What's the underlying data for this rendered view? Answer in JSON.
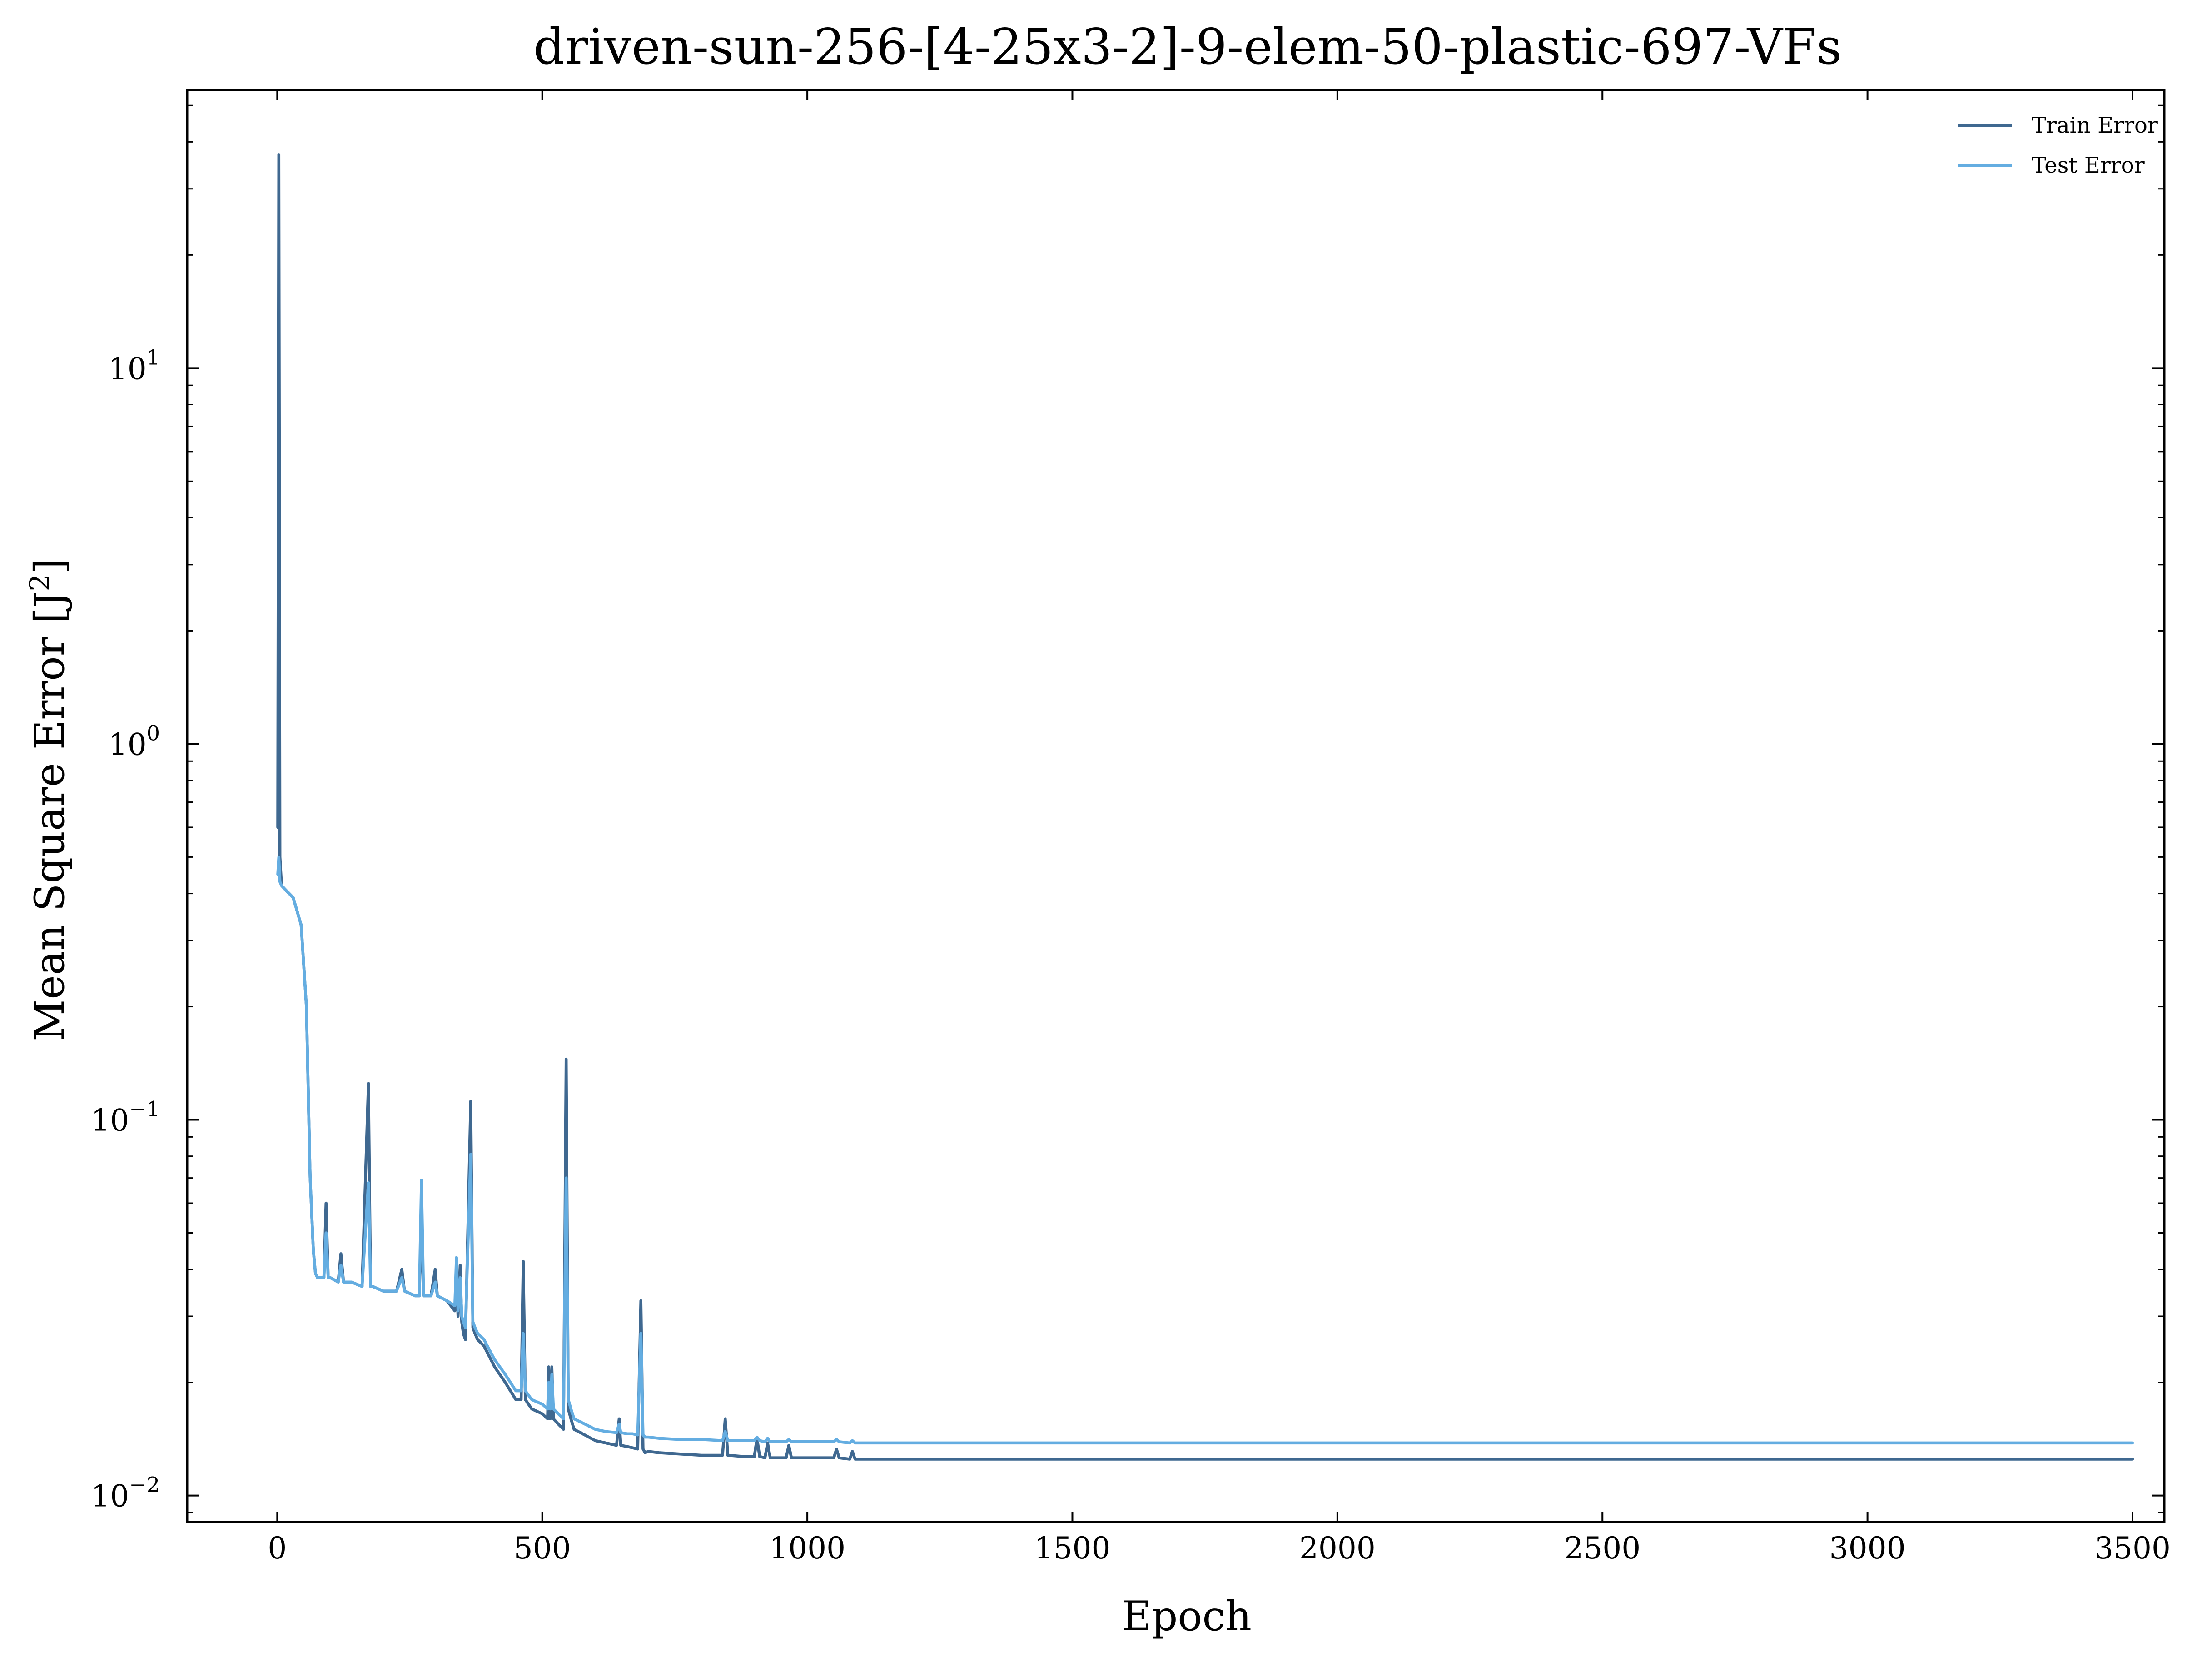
{
  "chart_data": {
    "type": "line",
    "title": "driven-sun-256-[4-25x3-2]-9-elem-50-plastic-697-VFs",
    "xlabel": "Epoch",
    "ylabel": "Mean Square Error [J",
    "ylabel_superscript": "2",
    "ylabel_suffix": "]",
    "xlim": [
      -170,
      3560
    ],
    "ylim": [
      0.0085,
      55
    ],
    "yscale": "log",
    "grid": false,
    "legend_position": "top-right",
    "x_ticks": [
      0,
      500,
      1000,
      1500,
      2000,
      2500,
      3000,
      3500
    ],
    "x_tick_labels": [
      "0",
      "500",
      "1000",
      "1500",
      "2000",
      "2500",
      "3000",
      "3500"
    ],
    "y_ticks": [
      0.01,
      0.1,
      1,
      10
    ],
    "y_tick_labels": [
      {
        "base": "10",
        "exp": "−2"
      },
      {
        "base": "10",
        "exp": "−1"
      },
      {
        "base": "10",
        "exp": "0"
      },
      {
        "base": "10",
        "exp": "1"
      }
    ],
    "series": [
      {
        "name": "Train Error",
        "color": "#3f6890",
        "x": [
          1,
          3,
          5,
          8,
          15,
          30,
          45,
          55,
          62,
          68,
          72,
          76,
          80,
          88,
          92,
          96,
          100,
          115,
          120,
          125,
          140,
          160,
          172,
          176,
          180,
          200,
          225,
          235,
          240,
          260,
          268,
          272,
          276,
          290,
          298,
          302,
          320,
          335,
          338,
          341,
          345,
          348,
          351,
          355,
          365,
          369,
          373,
          378,
          390,
          410,
          430,
          450,
          460,
          464,
          468,
          480,
          500,
          510,
          512,
          515,
          518,
          521,
          530,
          540,
          545,
          549,
          554,
          560,
          580,
          600,
          620,
          640,
          645,
          648,
          660,
          670,
          680,
          686,
          690,
          694,
          700,
          720,
          760,
          800,
          840,
          845,
          850,
          880,
          900,
          905,
          910,
          920,
          925,
          930,
          960,
          965,
          970,
          1000,
          1050,
          1055,
          1060,
          1080,
          1085,
          1090,
          1200,
          1500,
          2000,
          2500,
          3000,
          3500
        ],
        "y": [
          0.6,
          37,
          0.5,
          0.42,
          0.41,
          0.39,
          0.33,
          0.2,
          0.07,
          0.045,
          0.039,
          0.038,
          0.038,
          0.038,
          0.06,
          0.038,
          0.038,
          0.037,
          0.044,
          0.037,
          0.037,
          0.036,
          0.125,
          0.036,
          0.036,
          0.035,
          0.035,
          0.04,
          0.035,
          0.034,
          0.034,
          0.055,
          0.034,
          0.034,
          0.04,
          0.034,
          0.033,
          0.031,
          0.04,
          0.03,
          0.041,
          0.029,
          0.027,
          0.026,
          0.112,
          0.028,
          0.027,
          0.026,
          0.025,
          0.022,
          0.02,
          0.018,
          0.018,
          0.042,
          0.018,
          0.017,
          0.0165,
          0.016,
          0.022,
          0.016,
          0.022,
          0.016,
          0.0155,
          0.015,
          0.145,
          0.017,
          0.016,
          0.015,
          0.0145,
          0.014,
          0.0138,
          0.0136,
          0.016,
          0.0136,
          0.0135,
          0.0134,
          0.0133,
          0.033,
          0.0133,
          0.013,
          0.0131,
          0.013,
          0.0129,
          0.0128,
          0.0128,
          0.016,
          0.0128,
          0.0127,
          0.0127,
          0.0142,
          0.0127,
          0.0126,
          0.0138,
          0.0126,
          0.0126,
          0.0136,
          0.0126,
          0.0126,
          0.0126,
          0.0133,
          0.0126,
          0.0125,
          0.0131,
          0.0125,
          0.0125,
          0.0125,
          0.0125,
          0.0125,
          0.0125,
          0.0125
        ]
      },
      {
        "name": "Test Error",
        "color": "#64ade1",
        "x": [
          1,
          3,
          5,
          8,
          15,
          30,
          45,
          55,
          62,
          68,
          72,
          76,
          80,
          88,
          92,
          96,
          100,
          115,
          120,
          125,
          140,
          160,
          172,
          176,
          180,
          200,
          225,
          235,
          240,
          260,
          268,
          272,
          276,
          290,
          298,
          302,
          320,
          335,
          338,
          341,
          345,
          348,
          351,
          355,
          365,
          369,
          373,
          378,
          390,
          410,
          430,
          450,
          460,
          464,
          468,
          480,
          500,
          510,
          512,
          515,
          518,
          521,
          530,
          540,
          545,
          549,
          554,
          560,
          580,
          600,
          620,
          640,
          645,
          648,
          660,
          670,
          680,
          686,
          690,
          694,
          700,
          720,
          760,
          800,
          840,
          845,
          850,
          880,
          900,
          905,
          910,
          920,
          925,
          930,
          960,
          965,
          970,
          1000,
          1050,
          1055,
          1060,
          1080,
          1085,
          1090,
          1200,
          1500,
          2000,
          2500,
          3000,
          3500
        ],
        "y": [
          0.45,
          0.5,
          0.43,
          0.42,
          0.41,
          0.39,
          0.33,
          0.2,
          0.07,
          0.045,
          0.039,
          0.038,
          0.038,
          0.038,
          0.05,
          0.038,
          0.038,
          0.037,
          0.041,
          0.037,
          0.037,
          0.036,
          0.068,
          0.036,
          0.036,
          0.035,
          0.035,
          0.038,
          0.035,
          0.034,
          0.034,
          0.069,
          0.034,
          0.034,
          0.037,
          0.034,
          0.033,
          0.032,
          0.043,
          0.031,
          0.038,
          0.03,
          0.029,
          0.028,
          0.081,
          0.029,
          0.028,
          0.027,
          0.026,
          0.023,
          0.021,
          0.019,
          0.019,
          0.027,
          0.019,
          0.018,
          0.0175,
          0.017,
          0.02,
          0.017,
          0.021,
          0.017,
          0.0165,
          0.016,
          0.07,
          0.018,
          0.017,
          0.016,
          0.0155,
          0.015,
          0.0148,
          0.0147,
          0.0155,
          0.0147,
          0.0146,
          0.0146,
          0.0145,
          0.027,
          0.0145,
          0.0143,
          0.0143,
          0.0142,
          0.0141,
          0.0141,
          0.014,
          0.0148,
          0.014,
          0.014,
          0.014,
          0.0143,
          0.014,
          0.0139,
          0.0142,
          0.0139,
          0.0139,
          0.0141,
          0.0139,
          0.0139,
          0.0139,
          0.0141,
          0.0139,
          0.0138,
          0.014,
          0.0138,
          0.0138,
          0.0138,
          0.0138,
          0.0138,
          0.0138,
          0.0138
        ]
      }
    ]
  }
}
